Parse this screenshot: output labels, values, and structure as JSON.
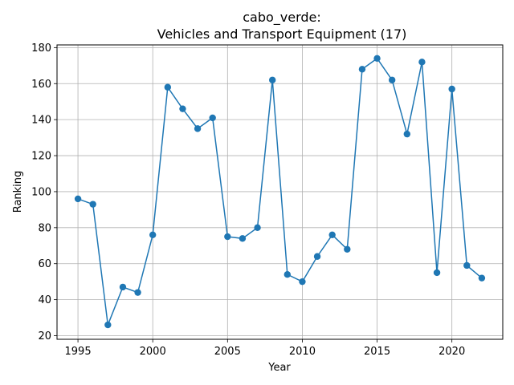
{
  "chart_data": {
    "type": "line",
    "title_line1": "cabo_verde:",
    "title_line2": "Vehicles and Transport Equipment (17)",
    "xlabel": "Year",
    "ylabel": "Ranking",
    "xlim": [
      1993.6,
      2023.4
    ],
    "ylim": [
      18.0,
      181.5
    ],
    "xticks": [
      1995,
      2000,
      2005,
      2010,
      2015,
      2020
    ],
    "yticks": [
      20,
      40,
      60,
      80,
      100,
      120,
      140,
      160,
      180
    ],
    "grid": true,
    "line_color": "#1f77b4",
    "x": [
      1995,
      1996,
      1997,
      1998,
      1999,
      2000,
      2001,
      2002,
      2003,
      2004,
      2005,
      2006,
      2007,
      2008,
      2009,
      2010,
      2011,
      2012,
      2013,
      2014,
      2015,
      2016,
      2017,
      2018,
      2019,
      2020,
      2021,
      2022
    ],
    "y": [
      96,
      93,
      26,
      47,
      44,
      76,
      158,
      146,
      135,
      141,
      75,
      74,
      80,
      162,
      54,
      50,
      64,
      76,
      68,
      168,
      174,
      162,
      132,
      172,
      55,
      157,
      59,
      52
    ]
  }
}
